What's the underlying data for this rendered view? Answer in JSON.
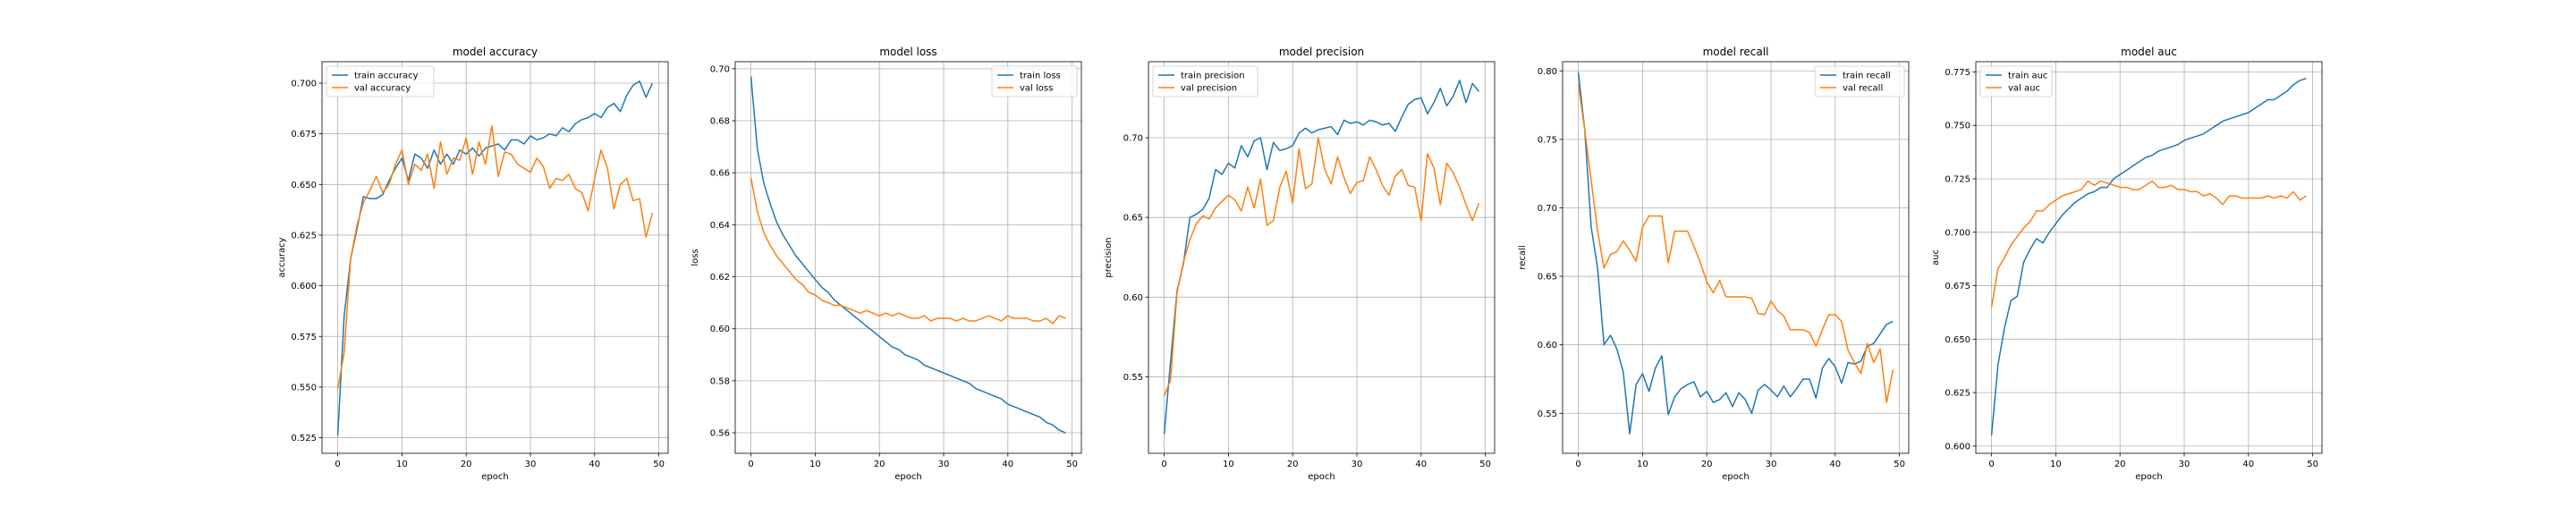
{
  "colors": {
    "train": "#1f77b4",
    "val": "#ff7f0e",
    "grid": "#b0b0b0",
    "axes": "#000000"
  },
  "chart_data": [
    {
      "type": "line",
      "title": "model accuracy",
      "xlabel": "epoch",
      "ylabel": "accuracy",
      "xlim": [
        -2.45,
        51.45
      ],
      "ylim": [
        0.5173,
        0.7106
      ],
      "xticks": [
        0,
        10,
        20,
        30,
        40,
        50
      ],
      "yticks": [
        0.525,
        0.55,
        0.575,
        0.6,
        0.625,
        0.65,
        0.675,
        0.7
      ],
      "ytick_labels": [
        "0.525",
        "0.550",
        "0.575",
        "0.600",
        "0.625",
        "0.650",
        "0.675",
        "0.700"
      ],
      "grid": true,
      "legend": "upper left",
      "series": [
        {
          "name": "train accuracy",
          "color": "#1f77b4",
          "values": [
            0.526,
            0.585,
            0.613,
            0.628,
            0.644,
            0.643,
            0.643,
            0.645,
            0.652,
            0.658,
            0.663,
            0.652,
            0.665,
            0.663,
            0.658,
            0.667,
            0.66,
            0.665,
            0.66,
            0.667,
            0.665,
            0.668,
            0.664,
            0.668,
            0.669,
            0.67,
            0.667,
            0.672,
            0.672,
            0.67,
            0.674,
            0.672,
            0.673,
            0.675,
            0.674,
            0.678,
            0.676,
            0.68,
            0.682,
            0.683,
            0.685,
            0.683,
            0.688,
            0.69,
            0.686,
            0.694,
            0.699,
            0.701,
            0.693,
            0.7
          ]
        },
        {
          "name": "val accuracy",
          "color": "#ff7f0e",
          "values": [
            0.549,
            0.567,
            0.613,
            0.63,
            0.641,
            0.647,
            0.654,
            0.646,
            0.65,
            0.66,
            0.667,
            0.65,
            0.66,
            0.657,
            0.665,
            0.648,
            0.671,
            0.655,
            0.663,
            0.662,
            0.673,
            0.655,
            0.671,
            0.66,
            0.679,
            0.654,
            0.666,
            0.665,
            0.66,
            0.658,
            0.656,
            0.663,
            0.659,
            0.648,
            0.653,
            0.652,
            0.655,
            0.648,
            0.646,
            0.637,
            0.653,
            0.667,
            0.658,
            0.638,
            0.65,
            0.653,
            0.642,
            0.643,
            0.624,
            0.636
          ]
        }
      ]
    },
    {
      "type": "line",
      "title": "model loss",
      "xlabel": "epoch",
      "ylabel": "loss",
      "xlim": [
        -2.45,
        51.45
      ],
      "ylim": [
        0.5521,
        0.7027
      ],
      "xticks": [
        0,
        10,
        20,
        30,
        40,
        50
      ],
      "yticks": [
        0.56,
        0.58,
        0.6,
        0.62,
        0.64,
        0.66,
        0.68,
        0.7
      ],
      "ytick_labels": [
        "0.56",
        "0.58",
        "0.60",
        "0.62",
        "0.64",
        "0.66",
        "0.68",
        "0.70"
      ],
      "grid": true,
      "legend": "upper right",
      "series": [
        {
          "name": "train loss",
          "color": "#1f77b4",
          "values": [
            0.697,
            0.669,
            0.656,
            0.648,
            0.641,
            0.636,
            0.632,
            0.628,
            0.625,
            0.622,
            0.619,
            0.616,
            0.614,
            0.611,
            0.609,
            0.607,
            0.605,
            0.603,
            0.601,
            0.599,
            0.597,
            0.595,
            0.593,
            0.592,
            0.59,
            0.589,
            0.588,
            0.586,
            0.585,
            0.584,
            0.583,
            0.582,
            0.581,
            0.58,
            0.579,
            0.577,
            0.576,
            0.575,
            0.574,
            0.573,
            0.571,
            0.57,
            0.569,
            0.568,
            0.567,
            0.566,
            0.564,
            0.563,
            0.561,
            0.56
          ]
        },
        {
          "name": "val loss",
          "color": "#ff7f0e",
          "values": [
            0.658,
            0.645,
            0.637,
            0.632,
            0.628,
            0.625,
            0.622,
            0.619,
            0.617,
            0.614,
            0.613,
            0.611,
            0.61,
            0.609,
            0.609,
            0.608,
            0.607,
            0.606,
            0.607,
            0.606,
            0.605,
            0.606,
            0.605,
            0.606,
            0.605,
            0.604,
            0.604,
            0.605,
            0.603,
            0.604,
            0.604,
            0.604,
            0.603,
            0.604,
            0.603,
            0.603,
            0.604,
            0.605,
            0.604,
            0.603,
            0.605,
            0.604,
            0.604,
            0.604,
            0.603,
            0.603,
            0.604,
            0.602,
            0.605,
            0.604
          ]
        }
      ]
    },
    {
      "type": "line",
      "title": "model precision",
      "xlabel": "epoch",
      "ylabel": "precision",
      "xlim": [
        -2.45,
        51.45
      ],
      "ylim": [
        0.502,
        0.7477
      ],
      "xticks": [
        0,
        10,
        20,
        30,
        40,
        50
      ],
      "yticks": [
        0.55,
        0.6,
        0.65,
        0.7
      ],
      "ytick_labels": [
        "0.55",
        "0.60",
        "0.65",
        "0.70"
      ],
      "grid": true,
      "legend": "upper left",
      "series": [
        {
          "name": "train precision",
          "color": "#1f77b4",
          "values": [
            0.514,
            0.56,
            0.604,
            0.621,
            0.65,
            0.652,
            0.655,
            0.662,
            0.68,
            0.677,
            0.684,
            0.681,
            0.695,
            0.688,
            0.698,
            0.7,
            0.68,
            0.697,
            0.692,
            0.693,
            0.695,
            0.703,
            0.706,
            0.703,
            0.705,
            0.706,
            0.707,
            0.702,
            0.711,
            0.709,
            0.71,
            0.708,
            0.711,
            0.71,
            0.708,
            0.709,
            0.704,
            0.713,
            0.721,
            0.724,
            0.725,
            0.715,
            0.722,
            0.731,
            0.72,
            0.726,
            0.736,
            0.722,
            0.734,
            0.729
          ]
        },
        {
          "name": "val precision",
          "color": "#ff7f0e",
          "values": [
            0.538,
            0.548,
            0.603,
            0.622,
            0.636,
            0.646,
            0.651,
            0.649,
            0.656,
            0.66,
            0.664,
            0.661,
            0.654,
            0.669,
            0.656,
            0.674,
            0.645,
            0.648,
            0.669,
            0.679,
            0.659,
            0.693,
            0.668,
            0.671,
            0.7,
            0.68,
            0.671,
            0.688,
            0.675,
            0.665,
            0.672,
            0.673,
            0.688,
            0.68,
            0.67,
            0.664,
            0.676,
            0.68,
            0.67,
            0.669,
            0.648,
            0.69,
            0.681,
            0.658,
            0.684,
            0.678,
            0.669,
            0.658,
            0.648,
            0.659
          ]
        }
      ]
    },
    {
      "type": "line",
      "title": "model recall",
      "xlabel": "epoch",
      "ylabel": "recall",
      "xlim": [
        -2.45,
        51.45
      ],
      "ylim": [
        0.5208,
        0.8067
      ],
      "xticks": [
        0,
        10,
        20,
        30,
        40,
        50
      ],
      "yticks": [
        0.55,
        0.6,
        0.65,
        0.7,
        0.75,
        0.8
      ],
      "ytick_labels": [
        "0.55",
        "0.60",
        "0.65",
        "0.70",
        "0.75",
        "0.80"
      ],
      "grid": true,
      "legend": "upper right",
      "series": [
        {
          "name": "train recall",
          "color": "#1f77b4",
          "values": [
            0.799,
            0.757,
            0.686,
            0.656,
            0.6,
            0.607,
            0.597,
            0.58,
            0.535,
            0.571,
            0.579,
            0.566,
            0.583,
            0.592,
            0.549,
            0.562,
            0.568,
            0.571,
            0.573,
            0.562,
            0.566,
            0.558,
            0.56,
            0.565,
            0.555,
            0.565,
            0.56,
            0.55,
            0.567,
            0.571,
            0.567,
            0.562,
            0.57,
            0.562,
            0.568,
            0.575,
            0.575,
            0.561,
            0.583,
            0.59,
            0.584,
            0.572,
            0.587,
            0.586,
            0.588,
            0.599,
            0.601,
            0.608,
            0.615,
            0.617
          ]
        },
        {
          "name": "val recall",
          "color": "#ff7f0e",
          "values": [
            0.79,
            0.757,
            0.72,
            0.683,
            0.656,
            0.666,
            0.668,
            0.676,
            0.669,
            0.661,
            0.686,
            0.694,
            0.694,
            0.694,
            0.66,
            0.683,
            0.683,
            0.683,
            0.672,
            0.66,
            0.646,
            0.638,
            0.647,
            0.635,
            0.635,
            0.635,
            0.635,
            0.634,
            0.623,
            0.622,
            0.632,
            0.625,
            0.621,
            0.611,
            0.611,
            0.611,
            0.609,
            0.599,
            0.611,
            0.622,
            0.622,
            0.617,
            0.596,
            0.587,
            0.579,
            0.601,
            0.587,
            0.597,
            0.558,
            0.582
          ]
        }
      ]
    },
    {
      "type": "line",
      "title": "model auc",
      "xlabel": "epoch",
      "ylabel": "auc",
      "xlim": [
        -2.45,
        51.45
      ],
      "ylim": [
        0.5966,
        0.7798
      ],
      "xticks": [
        0,
        10,
        20,
        30,
        40,
        50
      ],
      "yticks": [
        0.6,
        0.625,
        0.65,
        0.675,
        0.7,
        0.725,
        0.75,
        0.775
      ],
      "ytick_labels": [
        "0.600",
        "0.625",
        "0.650",
        "0.675",
        "0.700",
        "0.725",
        "0.750",
        "0.775"
      ],
      "grid": true,
      "legend": "upper left",
      "series": [
        {
          "name": "train auc",
          "color": "#1f77b4",
          "values": [
            0.605,
            0.638,
            0.655,
            0.668,
            0.67,
            0.686,
            0.692,
            0.697,
            0.695,
            0.7,
            0.704,
            0.708,
            0.711,
            0.714,
            0.716,
            0.718,
            0.719,
            0.721,
            0.721,
            0.725,
            0.727,
            0.729,
            0.731,
            0.733,
            0.735,
            0.736,
            0.738,
            0.739,
            0.74,
            0.741,
            0.743,
            0.744,
            0.745,
            0.746,
            0.748,
            0.75,
            0.752,
            0.753,
            0.754,
            0.755,
            0.756,
            0.758,
            0.76,
            0.762,
            0.762,
            0.764,
            0.766,
            0.769,
            0.771,
            0.772
          ]
        },
        {
          "name": "val auc",
          "color": "#ff7f0e",
          "values": [
            0.665,
            0.683,
            0.688,
            0.694,
            0.698,
            0.702,
            0.705,
            0.71,
            0.71,
            0.713,
            0.715,
            0.717,
            0.718,
            0.719,
            0.72,
            0.724,
            0.722,
            0.724,
            0.723,
            0.722,
            0.721,
            0.721,
            0.72,
            0.72,
            0.722,
            0.724,
            0.721,
            0.721,
            0.722,
            0.72,
            0.72,
            0.719,
            0.719,
            0.717,
            0.718,
            0.716,
            0.713,
            0.717,
            0.717,
            0.716,
            0.716,
            0.716,
            0.716,
            0.717,
            0.716,
            0.717,
            0.716,
            0.719,
            0.715,
            0.717
          ]
        }
      ]
    }
  ]
}
